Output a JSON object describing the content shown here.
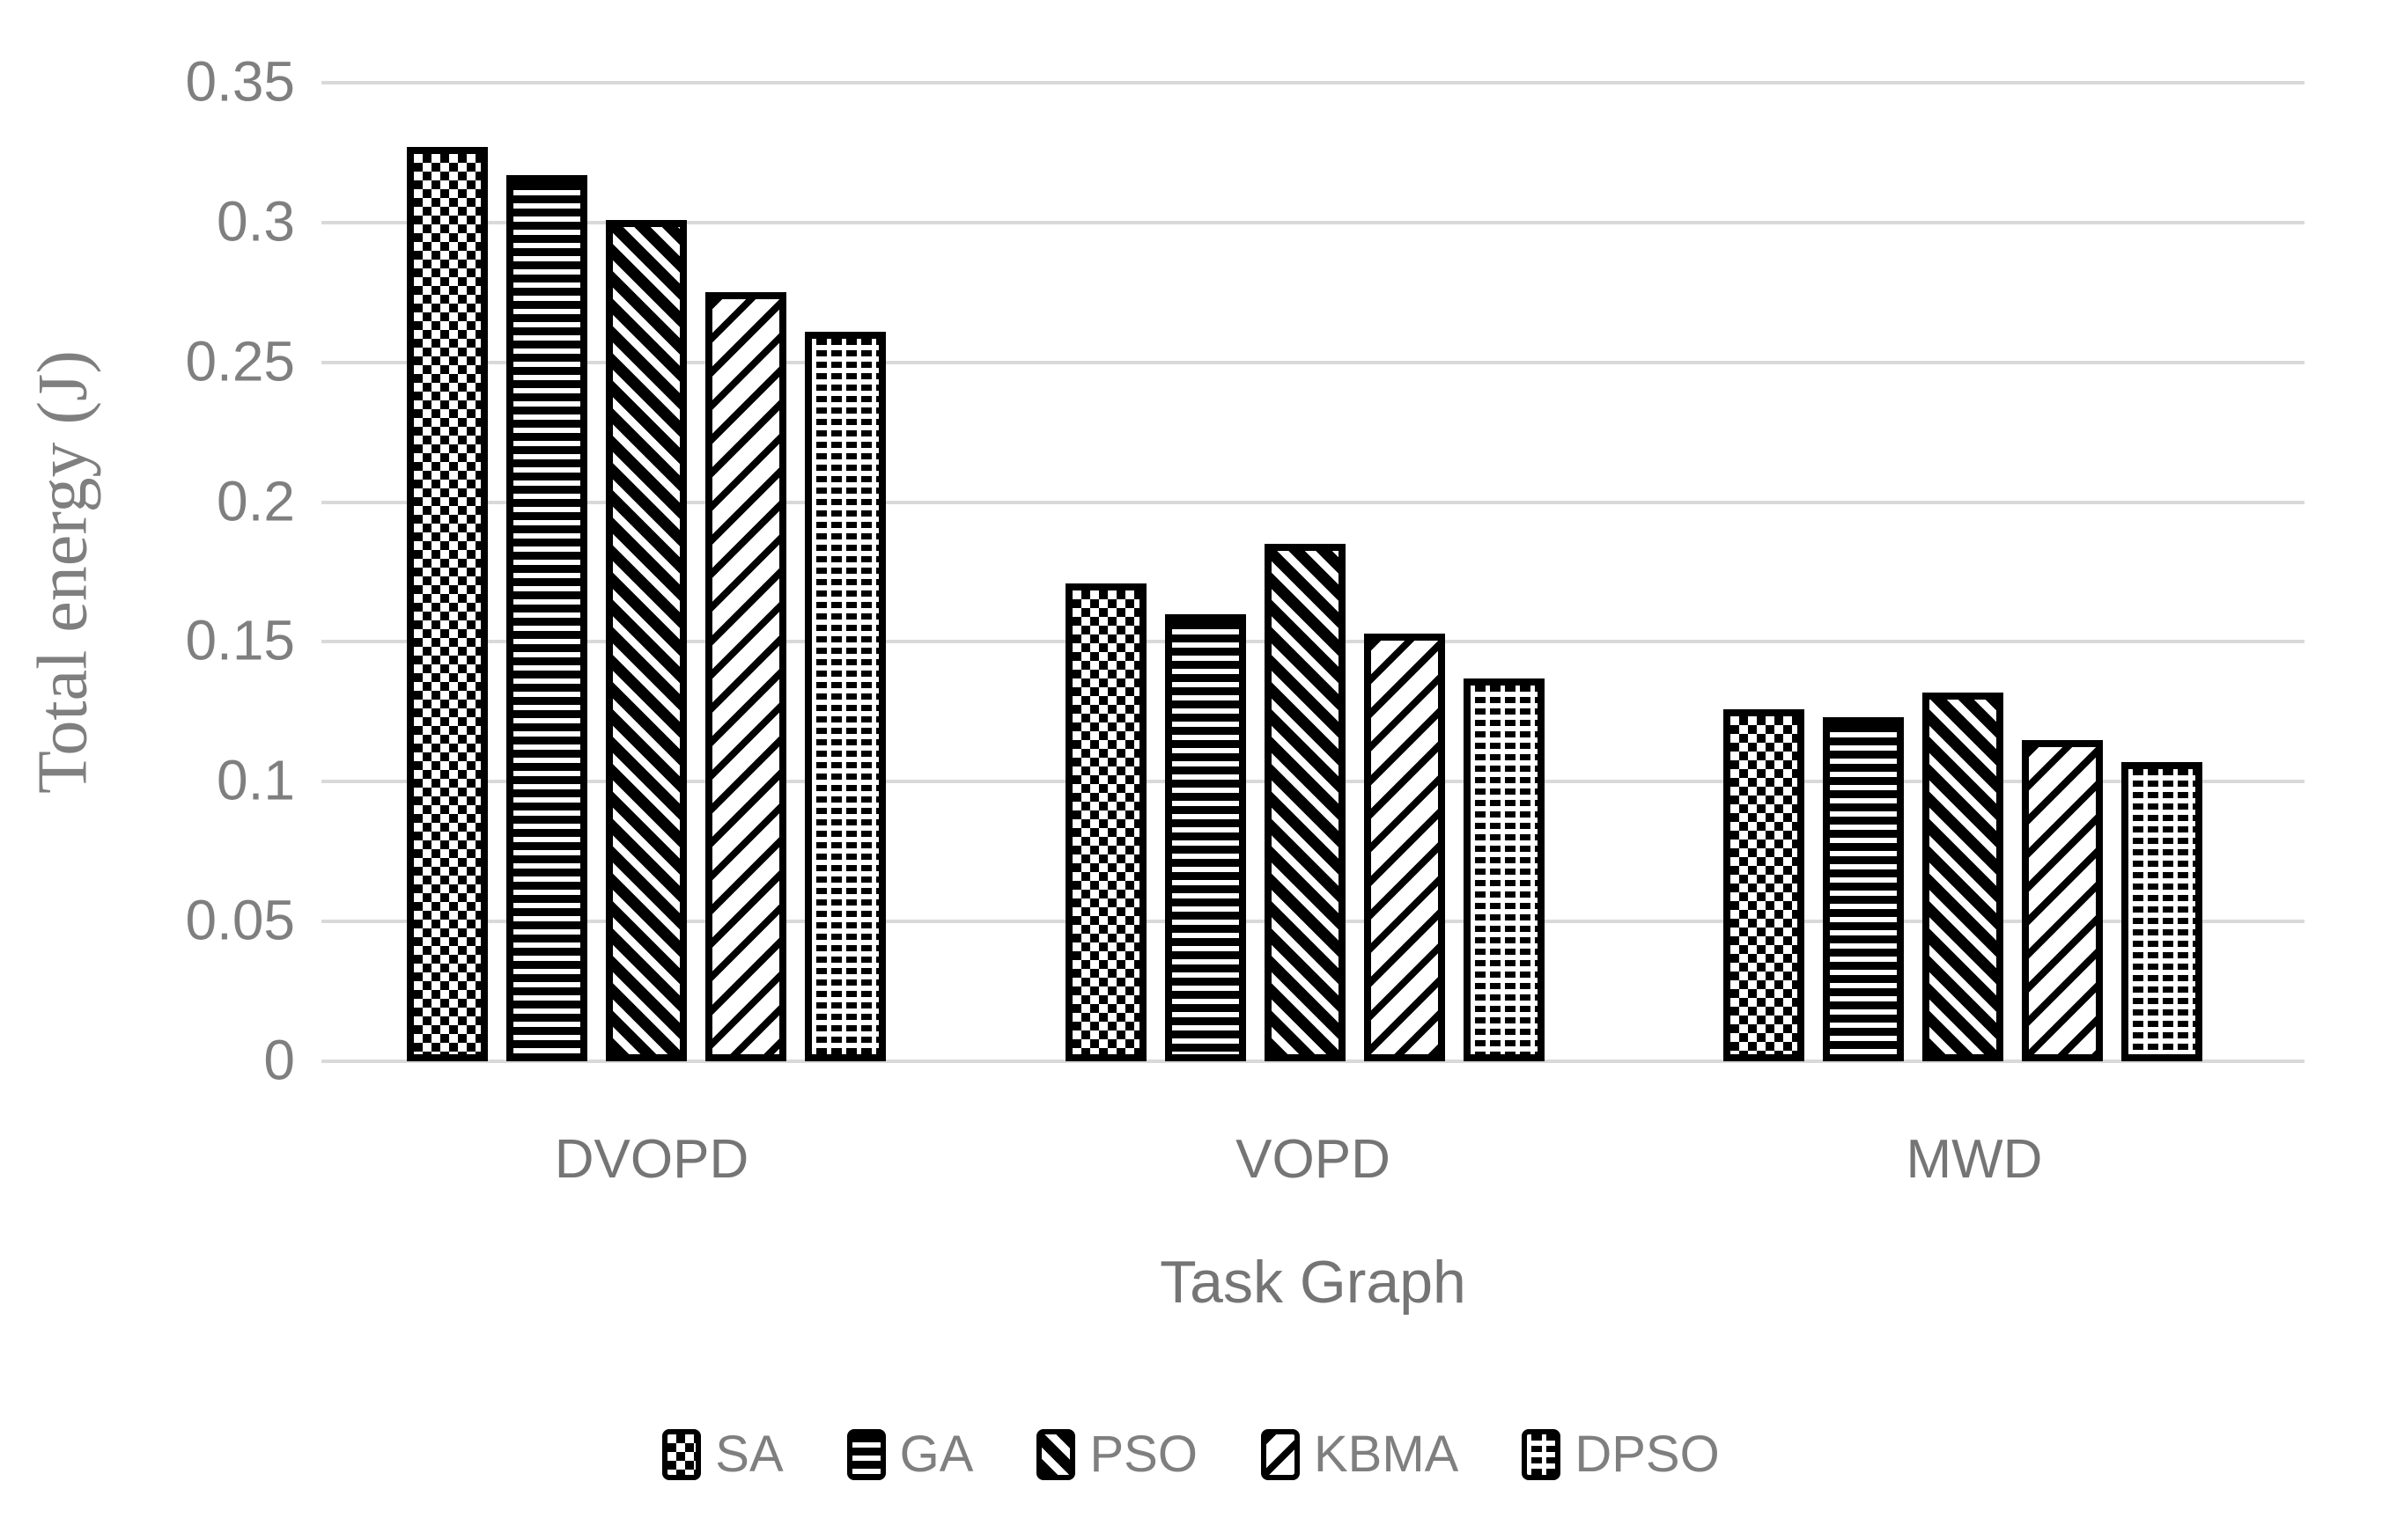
{
  "chart_data": {
    "type": "bar",
    "title": "",
    "categories": [
      "DVOPD",
      "VOPD",
      "MWD"
    ],
    "series": [
      {
        "name": "SA",
        "pattern": "checkerboard",
        "values": [
          0.327,
          0.171,
          0.126
        ]
      },
      {
        "name": "GA",
        "pattern": "horizontal-stripes",
        "values": [
          0.317,
          0.16,
          0.123
        ]
      },
      {
        "name": "PSO",
        "pattern": "diagonal-down-thick",
        "values": [
          0.301,
          0.185,
          0.132
        ]
      },
      {
        "name": "KBMA",
        "pattern": "diagonal-up-thin",
        "values": [
          0.275,
          0.153,
          0.115
        ]
      },
      {
        "name": "DPSO",
        "pattern": "dotted-grid",
        "values": [
          0.261,
          0.137,
          0.107
        ]
      }
    ],
    "xlabel": "Task Graph",
    "ylabel": "Total energy (J)",
    "ylim": [
      0,
      0.35
    ],
    "yticks": [
      0,
      0.05,
      0.1,
      0.15,
      0.2,
      0.25,
      0.3,
      0.35
    ],
    "ytick_labels": [
      "0",
      "0.05",
      "0.1",
      "0.15",
      "0.2",
      "0.25",
      "0.3",
      "0.35"
    ],
    "grid": "horizontal",
    "legend_position": "bottom",
    "colors": {
      "bar_fill": "#000000",
      "bar_bg": "#ffffff",
      "gridline": "#d9d9d9",
      "tick_text": "#7f7f7f",
      "label_text": "#757575",
      "legend_text": "#7f7f7f"
    }
  }
}
